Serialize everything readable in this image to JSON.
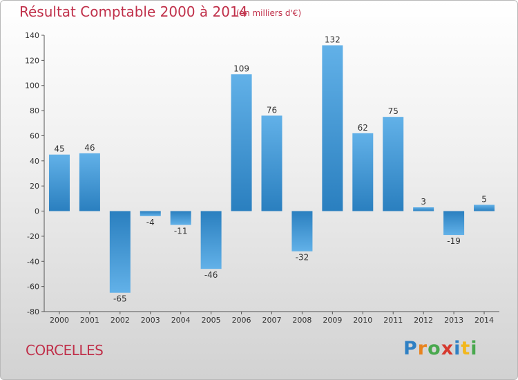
{
  "header": {
    "title": "Résultat Comptable 2000 à 2014",
    "subtitle": "(en milliers d'€)"
  },
  "footer": {
    "commune": "CORCELLES",
    "brand": "Proxiti",
    "brand_letters": [
      "P",
      "r",
      "o",
      "x",
      "i",
      "t",
      "i"
    ],
    "brand_colors": [
      "#2f80c4",
      "#e8831e",
      "#49a84e",
      "#d63a2f",
      "#2f80c4",
      "#f2b71c",
      "#49a84e"
    ]
  },
  "colors": {
    "bar_light": "#62b1e8",
    "bar_dark": "#2a7fbf",
    "text": "#333333",
    "title": "#c0304a"
  },
  "chart_data": {
    "type": "bar",
    "title": "Résultat Comptable 2000 à 2014",
    "subtitle": "(en milliers d'€)",
    "xlabel": "",
    "ylabel": "",
    "categories": [
      "2000",
      "2001",
      "2002",
      "2003",
      "2004",
      "2005",
      "2006",
      "2007",
      "2008",
      "2009",
      "2010",
      "2011",
      "2012",
      "2013",
      "2014"
    ],
    "values": [
      45,
      46,
      -65,
      -4,
      -11,
      -46,
      109,
      76,
      -32,
      132,
      62,
      75,
      3,
      -19,
      5
    ],
    "ylim": [
      -80,
      140
    ],
    "yticks": [
      -80,
      -60,
      -40,
      -20,
      0,
      20,
      40,
      60,
      80,
      100,
      120,
      140
    ],
    "grid": false,
    "data_labels": true
  }
}
